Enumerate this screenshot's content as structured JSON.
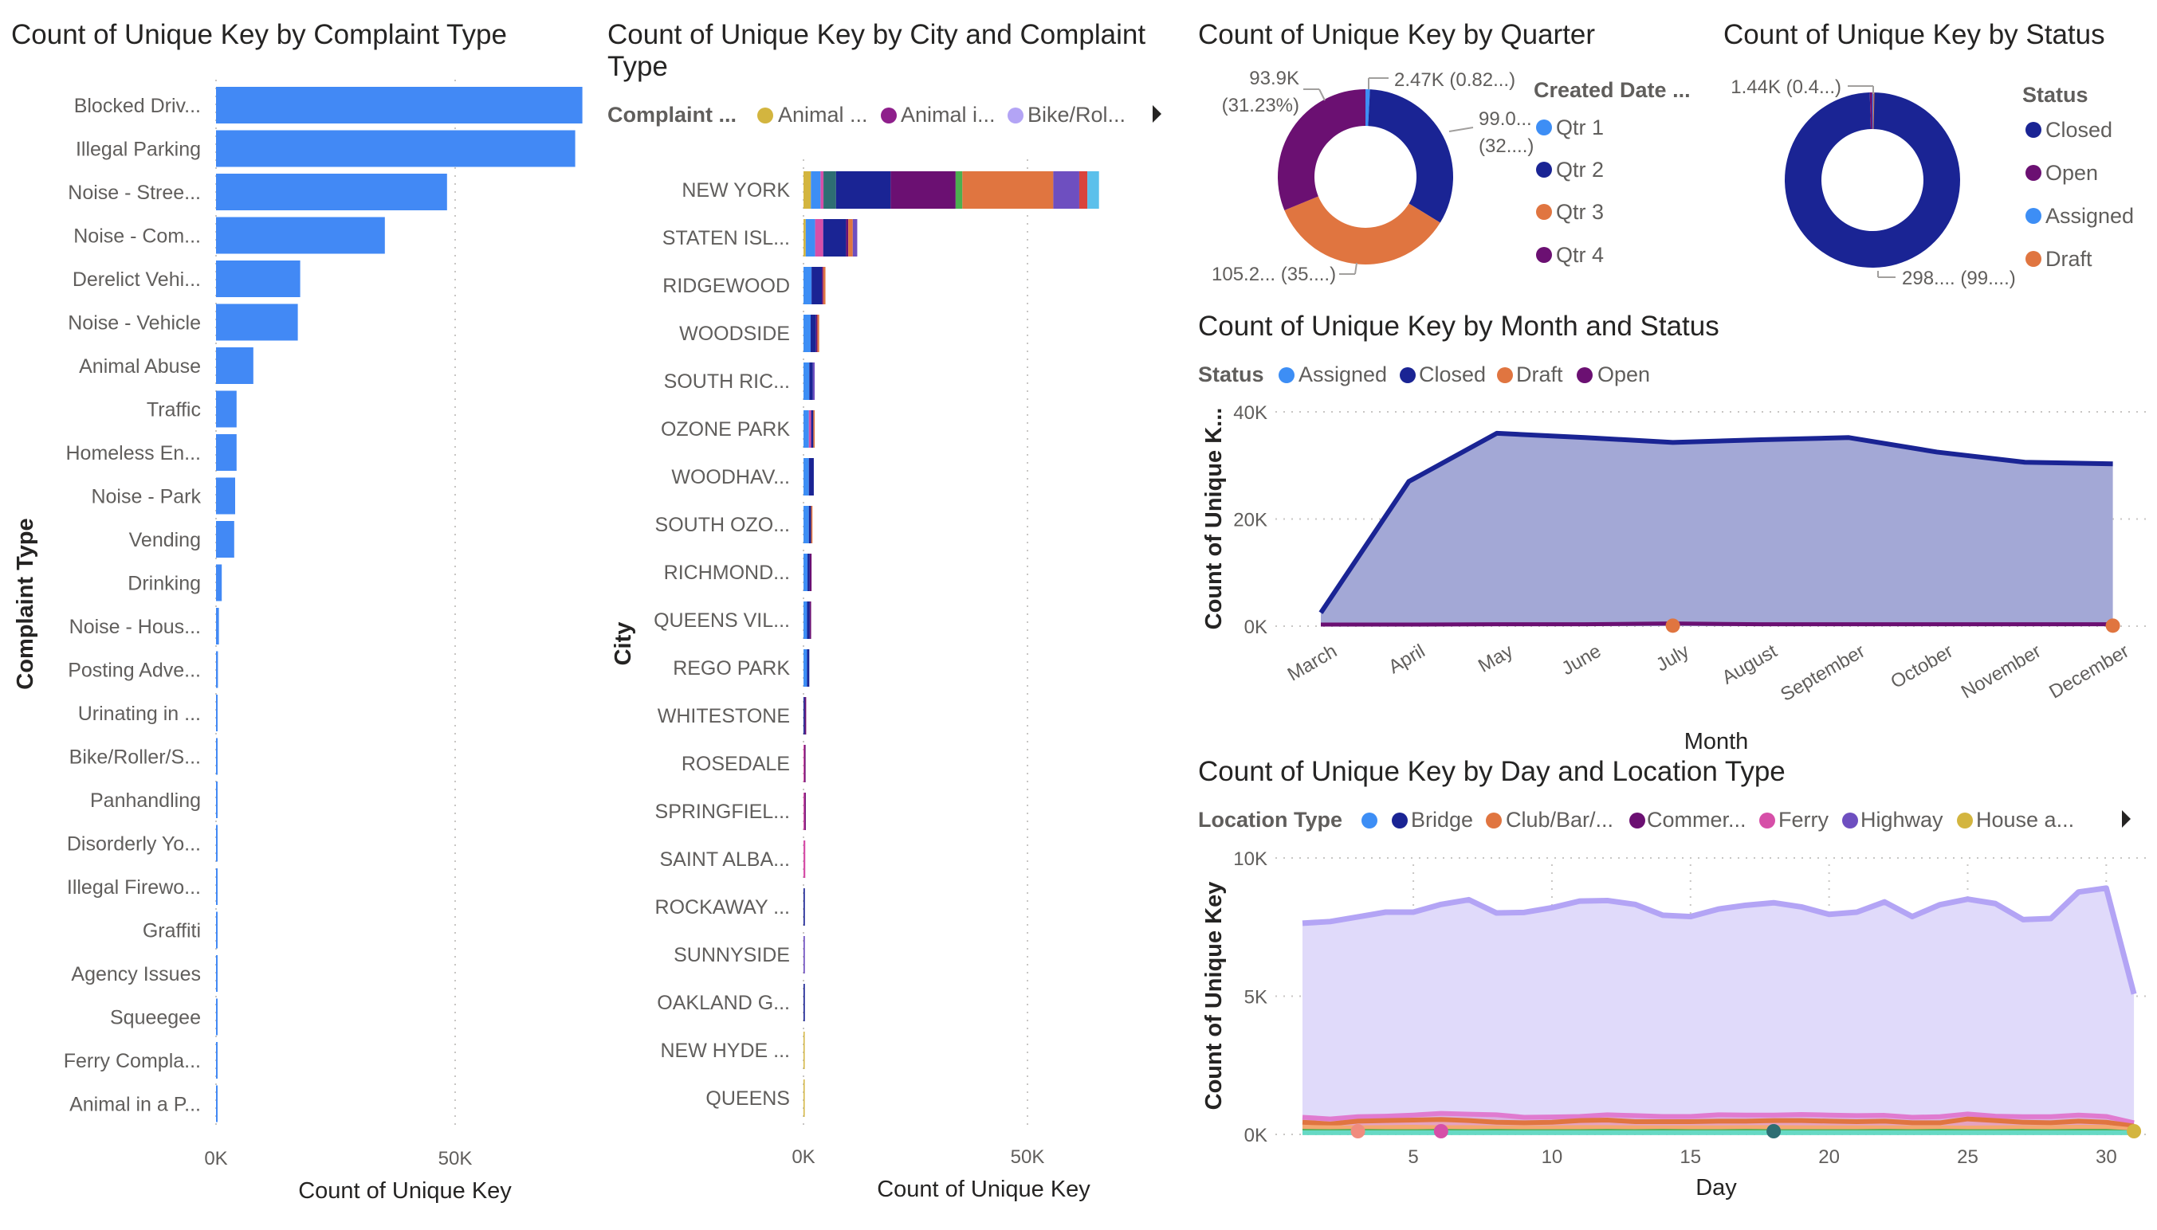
{
  "panels": {
    "complaint": {
      "title": "Count of Unique Key by Complaint Type"
    },
    "city": {
      "title_line1": "Count of Unique Key by City and Complaint",
      "title_line2": "Type",
      "legend": {
        "title": "Complaint ...",
        "items": [
          {
            "label": "Animal ...",
            "color": "#D3B53F"
          },
          {
            "label": "Animal i...",
            "color": "#8E1F8B"
          },
          {
            "label": "Bike/Rol...",
            "color": "#B3A4F5"
          }
        ]
      }
    },
    "quarter": {
      "title": "Count of Unique Key by Quarter",
      "legend": {
        "title": "Created Date ...",
        "items": [
          {
            "label": "Qtr 1",
            "color": "#3D8EF5"
          },
          {
            "label": "Qtr 2",
            "color": "#1A2494"
          },
          {
            "label": "Qtr 3",
            "color": "#E07540"
          },
          {
            "label": "Qtr 4",
            "color": "#6B1072"
          }
        ]
      }
    },
    "status": {
      "title": "Count of Unique Key by Status",
      "legend": {
        "title": "Status",
        "items": [
          {
            "label": "Closed",
            "color": "#1A2494"
          },
          {
            "label": "Open",
            "color": "#6B1072"
          },
          {
            "label": "Assigned",
            "color": "#3D8EF5"
          },
          {
            "label": "Draft",
            "color": "#E07540"
          }
        ]
      }
    },
    "month": {
      "title": "Count of Unique Key by Month and Status",
      "legend": {
        "title": "Status",
        "items": [
          {
            "label": "Assigned",
            "color": "#3D8EF5"
          },
          {
            "label": "Closed",
            "color": "#1A2494"
          },
          {
            "label": "Draft",
            "color": "#E07540"
          },
          {
            "label": "Open",
            "color": "#6B1072"
          }
        ]
      }
    },
    "day": {
      "title": "Count of Unique Key by Day and Location Type",
      "legend": {
        "title": "Location Type",
        "items": [
          {
            "label": "",
            "color": "#3D8EF5"
          },
          {
            "label": "Bridge",
            "color": "#1A2494"
          },
          {
            "label": "Club/Bar/...",
            "color": "#E07540"
          },
          {
            "label": "Commer...",
            "color": "#6B1072"
          },
          {
            "label": "Ferry",
            "color": "#D64FA8"
          },
          {
            "label": "Highway",
            "color": "#6E4FC0"
          },
          {
            "label": "House a...",
            "color": "#D3B53F"
          }
        ]
      }
    }
  },
  "chart_data": [
    {
      "type": "bar",
      "orientation": "horizontal",
      "xlabel": "Count of Unique Key",
      "ylabel": "Complaint Type",
      "xlim": [
        0,
        77000
      ],
      "xticks": [
        "0K",
        "50K"
      ],
      "xtick_values": [
        0,
        50000
      ],
      "color": "#4289F5",
      "grid": true,
      "categories": [
        "Blocked Driv...",
        "Illegal Parking",
        "Noise - Stree...",
        "Noise - Com...",
        "Derelict Vehi...",
        "Noise - Vehicle",
        "Animal Abuse",
        "Traffic",
        "Homeless En...",
        "Noise - Park",
        "Vending",
        "Drinking",
        "Noise - Hous...",
        "Posting Adve...",
        "Urinating in ...",
        "Bike/Roller/S...",
        "Panhandling",
        "Disorderly Yo...",
        "Illegal Firewo...",
        "Graffiti",
        "Agency Issues",
        "Squeegee",
        "Ferry Compla...",
        "Animal in a P..."
      ],
      "values": [
        76600,
        75100,
        48300,
        35300,
        17600,
        17100,
        7800,
        4300,
        4300,
        4000,
        3800,
        1200,
        600,
        400,
        300,
        300,
        200,
        200,
        150,
        120,
        100,
        80,
        60,
        40
      ]
    },
    {
      "type": "bar",
      "orientation": "horizontal",
      "stacked": true,
      "xlabel": "Count of Unique Key",
      "ylabel": "City",
      "xlim": [
        0,
        77000
      ],
      "xticks": [
        "0K",
        "50K"
      ],
      "xtick_values": [
        0,
        50000
      ],
      "grid": true,
      "categories": [
        "NEW YORK",
        "STATEN ISL...",
        "RIDGEWOOD",
        "WOODSIDE",
        "SOUTH RIC...",
        "OZONE PARK",
        "WOODHAV...",
        "SOUTH OZO...",
        "RICHMOND...",
        "QUEENS VIL...",
        "REGO PARK",
        "WHITESTONE",
        "ROSEDALE",
        "SPRINGFIEL...",
        "SAINT ALBA...",
        "ROCKAWAY ...",
        "SUNNYSIDE",
        "OAKLAND G...",
        "NEW HYDE ...",
        "QUEENS"
      ],
      "series": [
        {
          "name": "Animal ...",
          "color": "#D3B53F",
          "values": [
            1650,
            500,
            0,
            0,
            0,
            0,
            0,
            0,
            0,
            0,
            0,
            0,
            0,
            0,
            0,
            0,
            0,
            0,
            20,
            10
          ]
        },
        {
          "color": "#3D8EF5",
          "values": [
            2150,
            2100,
            1800,
            1600,
            1300,
            1200,
            1200,
            1200,
            900,
            800,
            800,
            0,
            0,
            0,
            0,
            0,
            0,
            0,
            0,
            0
          ]
        },
        {
          "color": "#D64FA8",
          "values": [
            660,
            1800,
            0,
            0,
            0,
            500,
            0,
            0,
            0,
            0,
            0,
            0,
            200,
            250,
            400,
            0,
            0,
            0,
            0,
            0
          ]
        },
        {
          "color": "#2E6E73",
          "values": [
            2800,
            0,
            0,
            0,
            0,
            0,
            0,
            0,
            0,
            0,
            0,
            0,
            0,
            0,
            0,
            0,
            0,
            0,
            0,
            0
          ]
        },
        {
          "color": "#1A2494",
          "values": [
            12200,
            5100,
            2300,
            1200,
            800,
            500,
            1100,
            500,
            500,
            600,
            500,
            300,
            0,
            0,
            0,
            300,
            0,
            300,
            0,
            0
          ]
        },
        {
          "color": "#6B1072",
          "values": [
            14500,
            500,
            300,
            300,
            0,
            0,
            0,
            0,
            400,
            300,
            0,
            300,
            200,
            150,
            0,
            0,
            0,
            0,
            0,
            0
          ]
        },
        {
          "color": "#4CAF50",
          "values": [
            1500,
            0,
            0,
            0,
            0,
            0,
            0,
            0,
            0,
            0,
            0,
            0,
            0,
            0,
            0,
            0,
            0,
            0,
            0,
            0
          ]
        },
        {
          "color": "#E07540",
          "values": [
            20300,
            1000,
            500,
            400,
            0,
            300,
            0,
            300,
            0,
            0,
            0,
            0,
            0,
            0,
            0,
            0,
            0,
            0,
            0,
            0
          ]
        },
        {
          "color": "#6E4FC0",
          "values": [
            5800,
            1000,
            0,
            0,
            400,
            0,
            0,
            0,
            0,
            0,
            0,
            0,
            0,
            0,
            0,
            0,
            300,
            0,
            0,
            0
          ]
        },
        {
          "color": "#D9443C",
          "values": [
            1800,
            0,
            0,
            0,
            0,
            0,
            0,
            0,
            0,
            0,
            0,
            0,
            0,
            0,
            0,
            0,
            0,
            0,
            0,
            0
          ]
        },
        {
          "color": "#5BC0EB",
          "values": [
            2600,
            0,
            0,
            0,
            0,
            0,
            0,
            0,
            0,
            0,
            0,
            0,
            0,
            0,
            0,
            0,
            0,
            0,
            0,
            0
          ]
        }
      ]
    },
    {
      "type": "pie",
      "donut": true,
      "categories": [
        "Qtr 1",
        "Qtr 2",
        "Qtr 3",
        "Qtr 4"
      ],
      "values": [
        2470,
        99000,
        105200,
        93900
      ],
      "colors": [
        "#3D8EF5",
        "#1A2494",
        "#E07540",
        "#6B1072"
      ],
      "data_labels": [
        [
          "2.47K (0.82...)"
        ],
        [
          "99.0...",
          "(32....)"
        ],
        [
          "105.2... (35....)"
        ],
        [
          "93.9K",
          "(31.23%)"
        ]
      ],
      "legend": "right"
    },
    {
      "type": "pie",
      "donut": true,
      "categories": [
        "Closed",
        "Open",
        "Assigned",
        "Draft"
      ],
      "values": [
        298000,
        1440,
        20,
        10
      ],
      "colors": [
        "#1A2494",
        "#6B1072",
        "#3D8EF5",
        "#E07540"
      ],
      "data_labels": [
        [
          "298.... (99....)"
        ],
        [
          "1.44K (0.4...)"
        ],
        [],
        []
      ],
      "legend": "right"
    },
    {
      "type": "area",
      "xlabel": "Month",
      "ylabel": "Count of Unique K...",
      "categories": [
        "March",
        "April",
        "May",
        "June",
        "July",
        "August",
        "September",
        "October",
        "November",
        "December"
      ],
      "ylim": [
        0,
        40000
      ],
      "yticks": [
        "0K",
        "20K",
        "40K"
      ],
      "ytick_values": [
        0,
        20000,
        40000
      ],
      "grid": true,
      "legend": "top-left",
      "series": [
        {
          "name": "Closed",
          "color": "#1A2494",
          "fill": "#A3A8D6",
          "values": [
            2500,
            27000,
            36000,
            35200,
            34300,
            34800,
            35200,
            32500,
            30600,
            30300
          ]
        },
        {
          "name": "Open",
          "color": "#6B1072",
          "values": [
            300,
            300,
            350,
            350,
            500,
            350,
            350,
            350,
            350,
            350
          ]
        },
        {
          "name": "Draft",
          "color": "#E07540",
          "values": [
            null,
            null,
            null,
            null,
            100,
            null,
            null,
            null,
            null,
            100
          ]
        },
        {
          "name": "Assigned",
          "color": "#3D8EF5",
          "values": [
            0,
            0,
            0,
            0,
            0,
            0,
            0,
            0,
            0,
            0
          ]
        }
      ]
    },
    {
      "type": "area",
      "xlabel": "Day",
      "ylabel": "Count of Unique Key",
      "x": [
        1,
        2,
        3,
        4,
        5,
        6,
        7,
        8,
        9,
        10,
        11,
        12,
        13,
        14,
        15,
        16,
        17,
        18,
        19,
        20,
        21,
        22,
        23,
        24,
        25,
        26,
        27,
        28,
        29,
        30,
        31
      ],
      "xlim": [
        1,
        31
      ],
      "xticks": [
        5,
        10,
        15,
        20,
        25,
        30
      ],
      "ylim": [
        0,
        10000
      ],
      "yticks": [
        "0K",
        "5K",
        "10K"
      ],
      "ytick_values": [
        0,
        5000,
        10000
      ],
      "grid": true,
      "legend": "top-left",
      "series": [
        {
          "color": "#B3A4F5",
          "fill": "#E0DAFA",
          "values": [
            7640,
            7700,
            7870,
            8040,
            8040,
            8320,
            8490,
            8010,
            8030,
            8200,
            8440,
            8460,
            8320,
            7930,
            7880,
            8150,
            8290,
            8380,
            8230,
            7960,
            8040,
            8410,
            7880,
            8310,
            8510,
            8350,
            7770,
            7810,
            8770,
            8910,
            5080
          ]
        },
        {
          "color": "#E07BD0",
          "fill": "#D9A9DC",
          "values": [
            620,
            560,
            640,
            660,
            700,
            760,
            730,
            710,
            620,
            630,
            650,
            710,
            680,
            650,
            650,
            710,
            700,
            700,
            720,
            700,
            680,
            690,
            620,
            640,
            740,
            660,
            640,
            640,
            700,
            650,
            420
          ]
        },
        {
          "color": "#E07540",
          "fill": "#E8A0B8",
          "values": [
            440,
            380,
            480,
            500,
            520,
            540,
            500,
            440,
            420,
            440,
            500,
            520,
            460,
            460,
            460,
            480,
            480,
            500,
            500,
            480,
            460,
            480,
            420,
            420,
            560,
            500,
            440,
            420,
            480,
            440,
            300
          ]
        },
        {
          "color": "#F4A870",
          "fill": "#F8C8A0",
          "values": [
            260,
            240,
            240,
            250,
            260,
            240,
            250,
            240,
            240,
            240,
            250,
            250,
            240,
            240,
            240,
            240,
            250,
            250,
            240,
            240,
            240,
            240,
            240,
            240,
            230,
            240,
            250,
            250,
            260,
            260,
            160
          ]
        },
        {
          "color": "#4CAF50",
          "fill": "#9BD69E",
          "values": [
            110,
            100,
            110,
            100,
            100,
            110,
            100,
            110,
            100,
            100,
            100,
            110,
            100,
            110,
            100,
            100,
            110,
            100,
            100,
            100,
            100,
            110,
            100,
            110,
            100,
            100,
            110,
            100,
            110,
            110,
            60
          ]
        },
        {
          "color": "#66D9C4",
          "fill": "#66D9C4",
          "values": [
            60,
            60,
            60,
            60,
            60,
            60,
            60,
            60,
            60,
            60,
            60,
            60,
            60,
            60,
            60,
            60,
            60,
            60,
            60,
            60,
            60,
            60,
            60,
            60,
            60,
            60,
            60,
            60,
            60,
            60,
            60
          ]
        }
      ],
      "point_markers": [
        {
          "day": 3,
          "value": 0,
          "color": "#F08C7E"
        },
        {
          "day": 6,
          "value": 0,
          "color": "#D64FA8"
        },
        {
          "day": 18,
          "value": 0,
          "color": "#2E6E73"
        },
        {
          "day": 31,
          "value": 0,
          "color": "#D3B53F"
        }
      ]
    }
  ]
}
